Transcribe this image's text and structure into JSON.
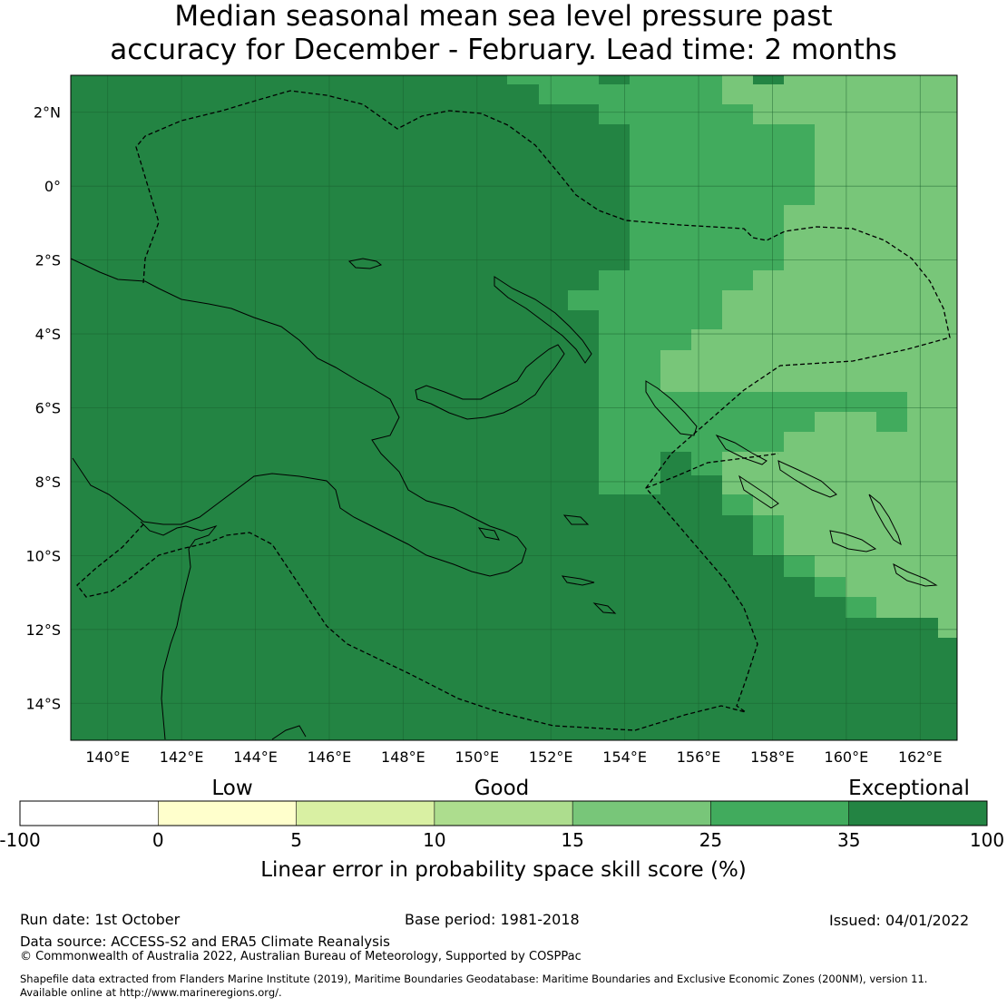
{
  "title": {
    "line1": "Median seasonal mean sea level pressure past",
    "line2": "accuracy for December - February. Lead time: 2 months"
  },
  "map": {
    "lon_range": [
      139,
      163
    ],
    "lat_range": [
      -15,
      3
    ],
    "lon_ticks": [
      "140°E",
      "142°E",
      "144°E",
      "146°E",
      "148°E",
      "150°E",
      "152°E",
      "154°E",
      "156°E",
      "158°E",
      "160°E",
      "162°E"
    ],
    "lat_ticks": [
      "2°N",
      "0°",
      "2°S",
      "4°S",
      "6°S",
      "8°S",
      "10°S",
      "12°S",
      "14°S"
    ],
    "colors": {
      "exceptional": "#238443",
      "good_high": "#41ab5d",
      "good_mid": "#78c679",
      "good_low": "#addd8e",
      "low_high": "#d9f0a3",
      "low": "#ffffcc",
      "none": "#ffffff",
      "grid": "#1a5e2e",
      "coast": "#000000"
    }
  },
  "colorbar": {
    "categories": [
      "Low",
      "Good",
      "Exceptional"
    ],
    "ticks": [
      "-100",
      "0",
      "5",
      "10",
      "15",
      "25",
      "35",
      "100"
    ],
    "label": "Linear error in probability space skill score (%)"
  },
  "footer": {
    "run_date": "Run date: 1st October",
    "base_period": "Base period: 1981-2018",
    "issued": "Issued: 04/01/2022",
    "data_source": "Data source: ACCESS-S2 and ERA5 Climate Reanalysis",
    "copyright": "© Commonwealth of Australia 2022, Australian Bureau of Meteorology, Supported by COSPPac",
    "shapefile_1": "Shapefile data extracted from Flanders Marine Institute (2019), Maritime Boundaries Geodatabase: Maritime Boundaries and Exclusive Economic Zones (200NM), version 11.",
    "shapefile_2": "Available online at http://www.marineregions.org/."
  }
}
